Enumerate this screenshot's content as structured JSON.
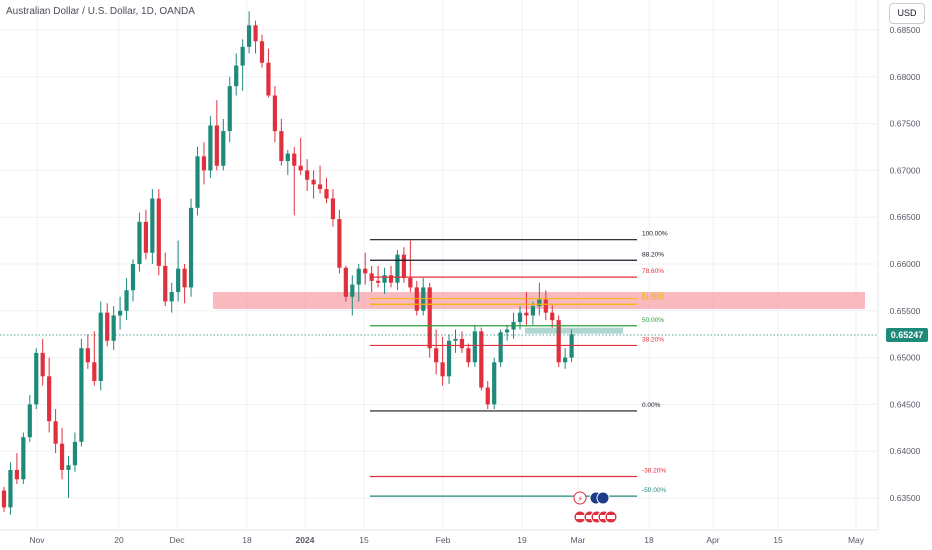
{
  "header": {
    "title": "Australian Dollar / U.S. Dollar, 1D, OANDA",
    "currency_button": "USD"
  },
  "price_axis": {
    "labels": [
      "0.68500",
      "0.68000",
      "0.67500",
      "0.67000",
      "0.66500",
      "0.66000",
      "0.65500",
      "0.65000",
      "0.64500",
      "0.64000",
      "0.63500"
    ],
    "current_price": "0.65247"
  },
  "time_axis": {
    "labels": [
      "Nov",
      "20",
      "Dec",
      "18",
      "2024",
      "15",
      "Feb",
      "19",
      "Mar",
      "18",
      "Apr",
      "15",
      "May"
    ]
  },
  "fib_levels": [
    {
      "label": "100.00%",
      "value": 0.6626,
      "color": "#131722"
    },
    {
      "label": "88.20%",
      "value": 0.6604,
      "color": "#131722"
    },
    {
      "label": "78.60%",
      "value": 0.6586,
      "color": "#e0303d"
    },
    {
      "label": "61.80%",
      "value": 0.6557,
      "color": "#f7b500"
    },
    {
      "label": "50.00%",
      "value": 0.6534,
      "color": "#2e9e3a"
    },
    {
      "label": "38.20%",
      "value": 0.6513,
      "color": "#e0303d"
    },
    {
      "label": "0.00%",
      "value": 0.6443,
      "color": "#131722"
    },
    {
      "label": "-38.20%",
      "value": 0.6373,
      "color": "#e0303d"
    },
    {
      "label": "-50.00%",
      "value": 0.6352,
      "color": "#1e8a7a"
    }
  ],
  "overlay_label": "61.80%",
  "colors": {
    "up": "#1e8a7a",
    "down": "#e0303d",
    "zone": "#f5a3a8",
    "grid": "#f0f1f4"
  },
  "event_icons": [
    "lightning-icon",
    "earnings-icon",
    "earnings-icon",
    "us-flag-icon",
    "us-flag-icon",
    "us-flag-icon",
    "us-flag-icon"
  ],
  "chart_data": {
    "type": "candlestick",
    "symbol": "AUD/USD",
    "ylim": [
      0.633,
      0.6875
    ],
    "candles": [
      [
        0.6358,
        0.6362,
        0.6335,
        0.634
      ],
      [
        0.634,
        0.6388,
        0.6332,
        0.638
      ],
      [
        0.638,
        0.6398,
        0.6365,
        0.637
      ],
      [
        0.637,
        0.642,
        0.6365,
        0.6415
      ],
      [
        0.6415,
        0.646,
        0.641,
        0.645
      ],
      [
        0.645,
        0.651,
        0.6445,
        0.6505
      ],
      [
        0.6505,
        0.652,
        0.647,
        0.648
      ],
      [
        0.648,
        0.65,
        0.642,
        0.6432
      ],
      [
        0.6432,
        0.6445,
        0.6398,
        0.6408
      ],
      [
        0.6408,
        0.6425,
        0.637,
        0.638
      ],
      [
        0.638,
        0.6395,
        0.635,
        0.6385
      ],
      [
        0.6385,
        0.642,
        0.6378,
        0.641
      ],
      [
        0.641,
        0.652,
        0.6405,
        0.651
      ],
      [
        0.651,
        0.6525,
        0.6488,
        0.6495
      ],
      [
        0.6495,
        0.6528,
        0.647,
        0.6475
      ],
      [
        0.6475,
        0.656,
        0.6465,
        0.6548
      ],
      [
        0.6548,
        0.6558,
        0.6512,
        0.6518
      ],
      [
        0.6518,
        0.6555,
        0.6508,
        0.6545
      ],
      [
        0.6545,
        0.6565,
        0.653,
        0.655
      ],
      [
        0.655,
        0.6585,
        0.654,
        0.6572
      ],
      [
        0.6572,
        0.6605,
        0.656,
        0.66
      ],
      [
        0.66,
        0.6655,
        0.6592,
        0.6645
      ],
      [
        0.6645,
        0.6658,
        0.6605,
        0.6612
      ],
      [
        0.6612,
        0.668,
        0.66,
        0.667
      ],
      [
        0.667,
        0.668,
        0.6588,
        0.6598
      ],
      [
        0.6598,
        0.6612,
        0.6555,
        0.656
      ],
      [
        0.656,
        0.658,
        0.6548,
        0.657
      ],
      [
        0.657,
        0.6625,
        0.656,
        0.6595
      ],
      [
        0.6595,
        0.66,
        0.6558,
        0.6575
      ],
      [
        0.6575,
        0.667,
        0.6565,
        0.666
      ],
      [
        0.666,
        0.6725,
        0.6652,
        0.6715
      ],
      [
        0.6715,
        0.673,
        0.6685,
        0.67
      ],
      [
        0.67,
        0.6758,
        0.6692,
        0.6748
      ],
      [
        0.6748,
        0.6775,
        0.67,
        0.6705
      ],
      [
        0.6705,
        0.6755,
        0.67,
        0.6742
      ],
      [
        0.6742,
        0.68,
        0.673,
        0.679
      ],
      [
        0.679,
        0.6825,
        0.678,
        0.6812
      ],
      [
        0.6812,
        0.684,
        0.6785,
        0.6832
      ],
      [
        0.6832,
        0.687,
        0.6825,
        0.6855
      ],
      [
        0.6855,
        0.686,
        0.6825,
        0.6838
      ],
      [
        0.6838,
        0.6845,
        0.681,
        0.6815
      ],
      [
        0.6815,
        0.683,
        0.6778,
        0.678
      ],
      [
        0.678,
        0.679,
        0.673,
        0.6742
      ],
      [
        0.6742,
        0.6755,
        0.6705,
        0.671
      ],
      [
        0.671,
        0.6722,
        0.6695,
        0.6718
      ],
      [
        0.6718,
        0.6725,
        0.6652,
        0.6705
      ],
      [
        0.6705,
        0.6735,
        0.6695,
        0.67
      ],
      [
        0.67,
        0.6712,
        0.6678,
        0.669
      ],
      [
        0.669,
        0.67,
        0.667,
        0.6685
      ],
      [
        0.6685,
        0.6705,
        0.6675,
        0.668
      ],
      [
        0.668,
        0.6692,
        0.6665,
        0.667
      ],
      [
        0.667,
        0.668,
        0.664,
        0.6648
      ],
      [
        0.6648,
        0.6658,
        0.659,
        0.6596
      ],
      [
        0.6596,
        0.6598,
        0.656,
        0.6565
      ],
      [
        0.6565,
        0.6588,
        0.6545,
        0.6578
      ],
      [
        0.6578,
        0.66,
        0.656,
        0.6595
      ],
      [
        0.6595,
        0.6612,
        0.6578,
        0.659
      ],
      [
        0.659,
        0.6598,
        0.657,
        0.6582
      ],
      [
        0.6582,
        0.6598,
        0.6575,
        0.658
      ],
      [
        0.658,
        0.6596,
        0.6568,
        0.6588
      ],
      [
        0.6588,
        0.6598,
        0.6575,
        0.658
      ],
      [
        0.658,
        0.6615,
        0.6572,
        0.661
      ],
      [
        0.661,
        0.6618,
        0.658,
        0.6585
      ],
      [
        0.6585,
        0.6625,
        0.657,
        0.6575
      ],
      [
        0.6575,
        0.6582,
        0.6545,
        0.655
      ],
      [
        0.655,
        0.6585,
        0.6545,
        0.6575
      ],
      [
        0.6575,
        0.658,
        0.65,
        0.651
      ],
      [
        0.651,
        0.653,
        0.6482,
        0.6495
      ],
      [
        0.6495,
        0.6522,
        0.647,
        0.648
      ],
      [
        0.648,
        0.6525,
        0.6472,
        0.6518
      ],
      [
        0.6518,
        0.653,
        0.6505,
        0.652
      ],
      [
        0.652,
        0.6528,
        0.6505,
        0.651
      ],
      [
        0.651,
        0.6515,
        0.649,
        0.6495
      ],
      [
        0.6495,
        0.6535,
        0.649,
        0.6528
      ],
      [
        0.6528,
        0.6532,
        0.6465,
        0.6468
      ],
      [
        0.6468,
        0.6475,
        0.6445,
        0.645
      ],
      [
        0.645,
        0.65,
        0.6445,
        0.6495
      ],
      [
        0.6495,
        0.653,
        0.649,
        0.6527
      ],
      [
        0.6527,
        0.6535,
        0.6518,
        0.653
      ],
      [
        0.653,
        0.6548,
        0.652,
        0.6538
      ],
      [
        0.6538,
        0.6555,
        0.653,
        0.6548
      ],
      [
        0.6548,
        0.657,
        0.6535,
        0.6545
      ],
      [
        0.6545,
        0.656,
        0.6535,
        0.6555
      ],
      [
        0.6555,
        0.658,
        0.6545,
        0.6562
      ],
      [
        0.6562,
        0.6572,
        0.654,
        0.6548
      ],
      [
        0.6548,
        0.6556,
        0.6532,
        0.654
      ],
      [
        0.654,
        0.6545,
        0.649,
        0.6495
      ],
      [
        0.6495,
        0.651,
        0.6488,
        0.65
      ],
      [
        0.65,
        0.653,
        0.6495,
        0.6525
      ]
    ]
  }
}
